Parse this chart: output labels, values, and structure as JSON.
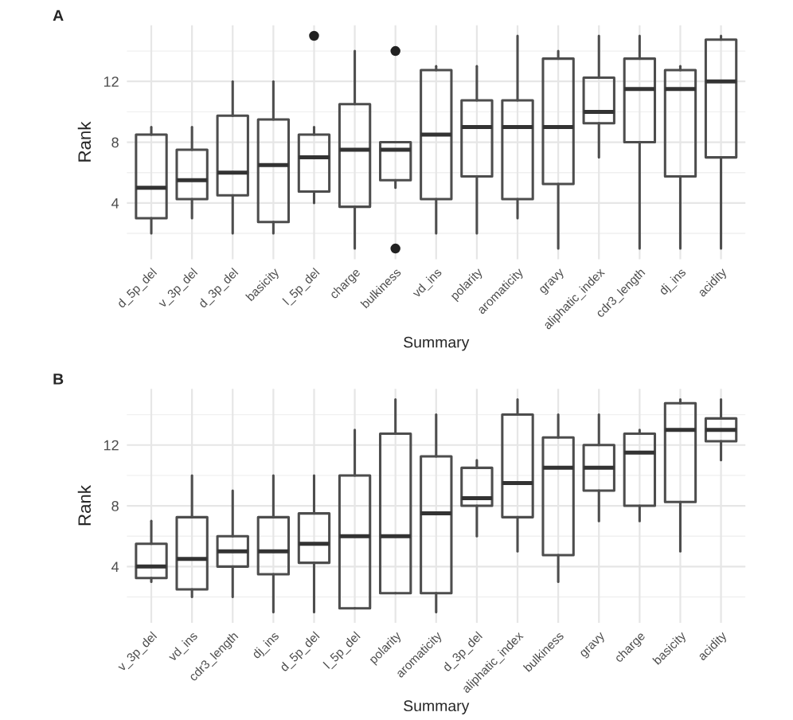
{
  "chart_data": [
    {
      "type": "box",
      "title": "A",
      "xlabel": "Summary",
      "ylabel": "Rank",
      "ylim": [
        0.3,
        15.7
      ],
      "yticks": [
        4,
        8,
        12
      ],
      "grid": true,
      "categories": [
        "d_5p_del",
        "v_3p_del",
        "d_3p_del",
        "basicity",
        "l_5p_del",
        "charge",
        "bulkiness",
        "vd_ins",
        "polarity",
        "aromaticity",
        "gravy",
        "aliphatic_index",
        "cdr3_length",
        "dj_ins",
        "acidity"
      ],
      "boxes": [
        {
          "low": 2,
          "q1": 3,
          "median": 5,
          "q3": 8.5,
          "high": 9
        },
        {
          "low": 3,
          "q1": 4.25,
          "median": 5.5,
          "q3": 7.5,
          "high": 9
        },
        {
          "low": 2,
          "q1": 4.5,
          "median": 6,
          "q3": 9.75,
          "high": 12
        },
        {
          "low": 2,
          "q1": 2.75,
          "median": 6.5,
          "q3": 9.5,
          "high": 12
        },
        {
          "low": 4,
          "q1": 4.75,
          "median": 7,
          "q3": 8.5,
          "high": 9,
          "outliers": [
            15
          ]
        },
        {
          "low": 1,
          "q1": 3.75,
          "median": 7.5,
          "q3": 10.5,
          "high": 14
        },
        {
          "low": 5,
          "q1": 5.5,
          "median": 7.5,
          "q3": 8,
          "high": 8,
          "outliers": [
            14,
            1
          ]
        },
        {
          "low": 2,
          "q1": 4.25,
          "median": 8.5,
          "q3": 12.75,
          "high": 13
        },
        {
          "low": 2,
          "q1": 5.75,
          "median": 9,
          "q3": 10.75,
          "high": 13
        },
        {
          "low": 3,
          "q1": 4.25,
          "median": 9,
          "q3": 10.75,
          "high": 15
        },
        {
          "low": 1,
          "q1": 5.25,
          "median": 9,
          "q3": 13.5,
          "high": 14
        },
        {
          "low": 7,
          "q1": 9.25,
          "median": 10,
          "q3": 12.25,
          "high": 15
        },
        {
          "low": 1,
          "q1": 8,
          "median": 11.5,
          "q3": 13.5,
          "high": 15
        },
        {
          "low": 1,
          "q1": 5.75,
          "median": 11.5,
          "q3": 12.75,
          "high": 13
        },
        {
          "low": 1,
          "q1": 7,
          "median": 12,
          "q3": 14.75,
          "high": 15
        }
      ]
    },
    {
      "type": "box",
      "title": "B",
      "xlabel": "Summary",
      "ylabel": "Rank",
      "ylim": [
        0.3,
        15.7
      ],
      "yticks": [
        4,
        8,
        12
      ],
      "grid": true,
      "categories": [
        "v_3p_del",
        "vd_ins",
        "cdr3_length",
        "dj_ins",
        "d_5p_del",
        "l_5p_del",
        "polarity",
        "aromaticity",
        "d_3p_del",
        "aliphatic_index",
        "bulkiness",
        "gravy",
        "charge",
        "basicity",
        "acidity"
      ],
      "boxes": [
        {
          "low": 3,
          "q1": 3.25,
          "median": 4,
          "q3": 5.5,
          "high": 7
        },
        {
          "low": 2,
          "q1": 2.5,
          "median": 4.5,
          "q3": 7.25,
          "high": 10
        },
        {
          "low": 2,
          "q1": 4,
          "median": 5,
          "q3": 6,
          "high": 9
        },
        {
          "low": 1,
          "q1": 3.5,
          "median": 5,
          "q3": 7.25,
          "high": 10
        },
        {
          "low": 1,
          "q1": 4.25,
          "median": 5.5,
          "q3": 7.5,
          "high": 10
        },
        {
          "low": 1.25,
          "q1": 1.25,
          "median": 6,
          "q3": 10,
          "high": 13
        },
        {
          "low": 2.25,
          "q1": 2.25,
          "median": 6,
          "q3": 12.75,
          "high": 15
        },
        {
          "low": 1,
          "q1": 2.25,
          "median": 7.5,
          "q3": 11.25,
          "high": 14
        },
        {
          "low": 6,
          "q1": 8,
          "median": 8.5,
          "q3": 10.5,
          "high": 11
        },
        {
          "low": 5,
          "q1": 7.25,
          "median": 9.5,
          "q3": 14,
          "high": 15
        },
        {
          "low": 3,
          "q1": 4.75,
          "median": 10.5,
          "q3": 12.5,
          "high": 14
        },
        {
          "low": 7,
          "q1": 9,
          "median": 10.5,
          "q3": 12,
          "high": 14
        },
        {
          "low": 7,
          "q1": 8,
          "median": 11.5,
          "q3": 12.75,
          "high": 13
        },
        {
          "low": 5,
          "q1": 8.25,
          "median": 13,
          "q3": 14.75,
          "high": 15
        },
        {
          "low": 11,
          "q1": 12.25,
          "median": 13,
          "q3": 13.75,
          "high": 15
        }
      ]
    }
  ]
}
